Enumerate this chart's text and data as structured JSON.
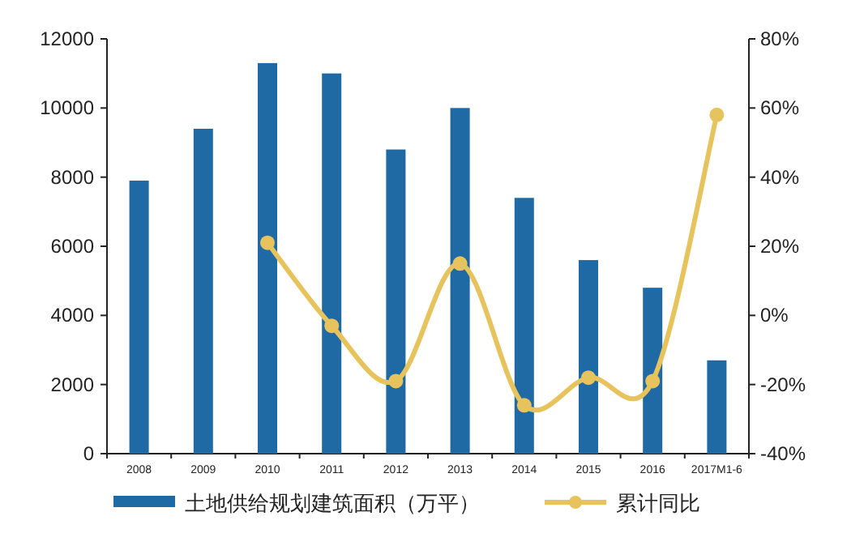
{
  "chart_data": {
    "type": "bar",
    "categories": [
      "2008",
      "2009",
      "2010",
      "2011",
      "2012",
      "2013",
      "2014",
      "2015",
      "2016",
      "2017M1-6"
    ],
    "series": [
      {
        "name": "土地供给规划建筑面积（万平）",
        "color": "#1f6aa5",
        "values": [
          7900,
          9400,
          11300,
          11000,
          8800,
          10000,
          7400,
          5600,
          4800,
          2700
        ]
      },
      {
        "name": "累计同比",
        "type": "line",
        "axis": "y2",
        "color": "#e6c35c",
        "marker": "circle",
        "values": [
          null,
          null,
          21,
          -3,
          -19,
          15,
          -26,
          -18,
          -19,
          58
        ]
      }
    ],
    "ylim": [
      0,
      12000
    ],
    "yticks": [
      0,
      2000,
      4000,
      6000,
      8000,
      10000,
      12000
    ],
    "y2lim": [
      -40,
      80
    ],
    "y2ticks": [
      {
        "value": -40,
        "label": "-40%"
      },
      {
        "value": -20,
        "label": "-20%"
      },
      {
        "value": 0,
        "label": "0%"
      },
      {
        "value": 20,
        "label": "20%"
      },
      {
        "value": 40,
        "label": "40%"
      },
      {
        "value": 60,
        "label": "60%"
      },
      {
        "value": 80,
        "label": "80%"
      }
    ],
    "grid": false,
    "legend": "bottom"
  }
}
